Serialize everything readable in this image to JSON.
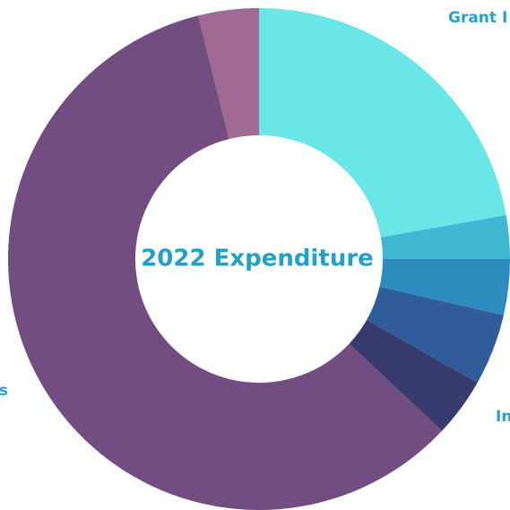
{
  "chart_data": {
    "type": "donut",
    "title": "2022 Expenditure",
    "categories": [
      "Grant I",
      null,
      null,
      null,
      "In",
      "s",
      null
    ],
    "values": [
      22.2,
      2.8,
      3.6,
      4.6,
      3.8,
      59.1,
      3.9
    ],
    "colors": [
      "#6ae6e8",
      "#40b8d4",
      "#2e8bbd",
      "#305c99",
      "#363a6c",
      "#714d82",
      "#a06a93"
    ]
  }
}
